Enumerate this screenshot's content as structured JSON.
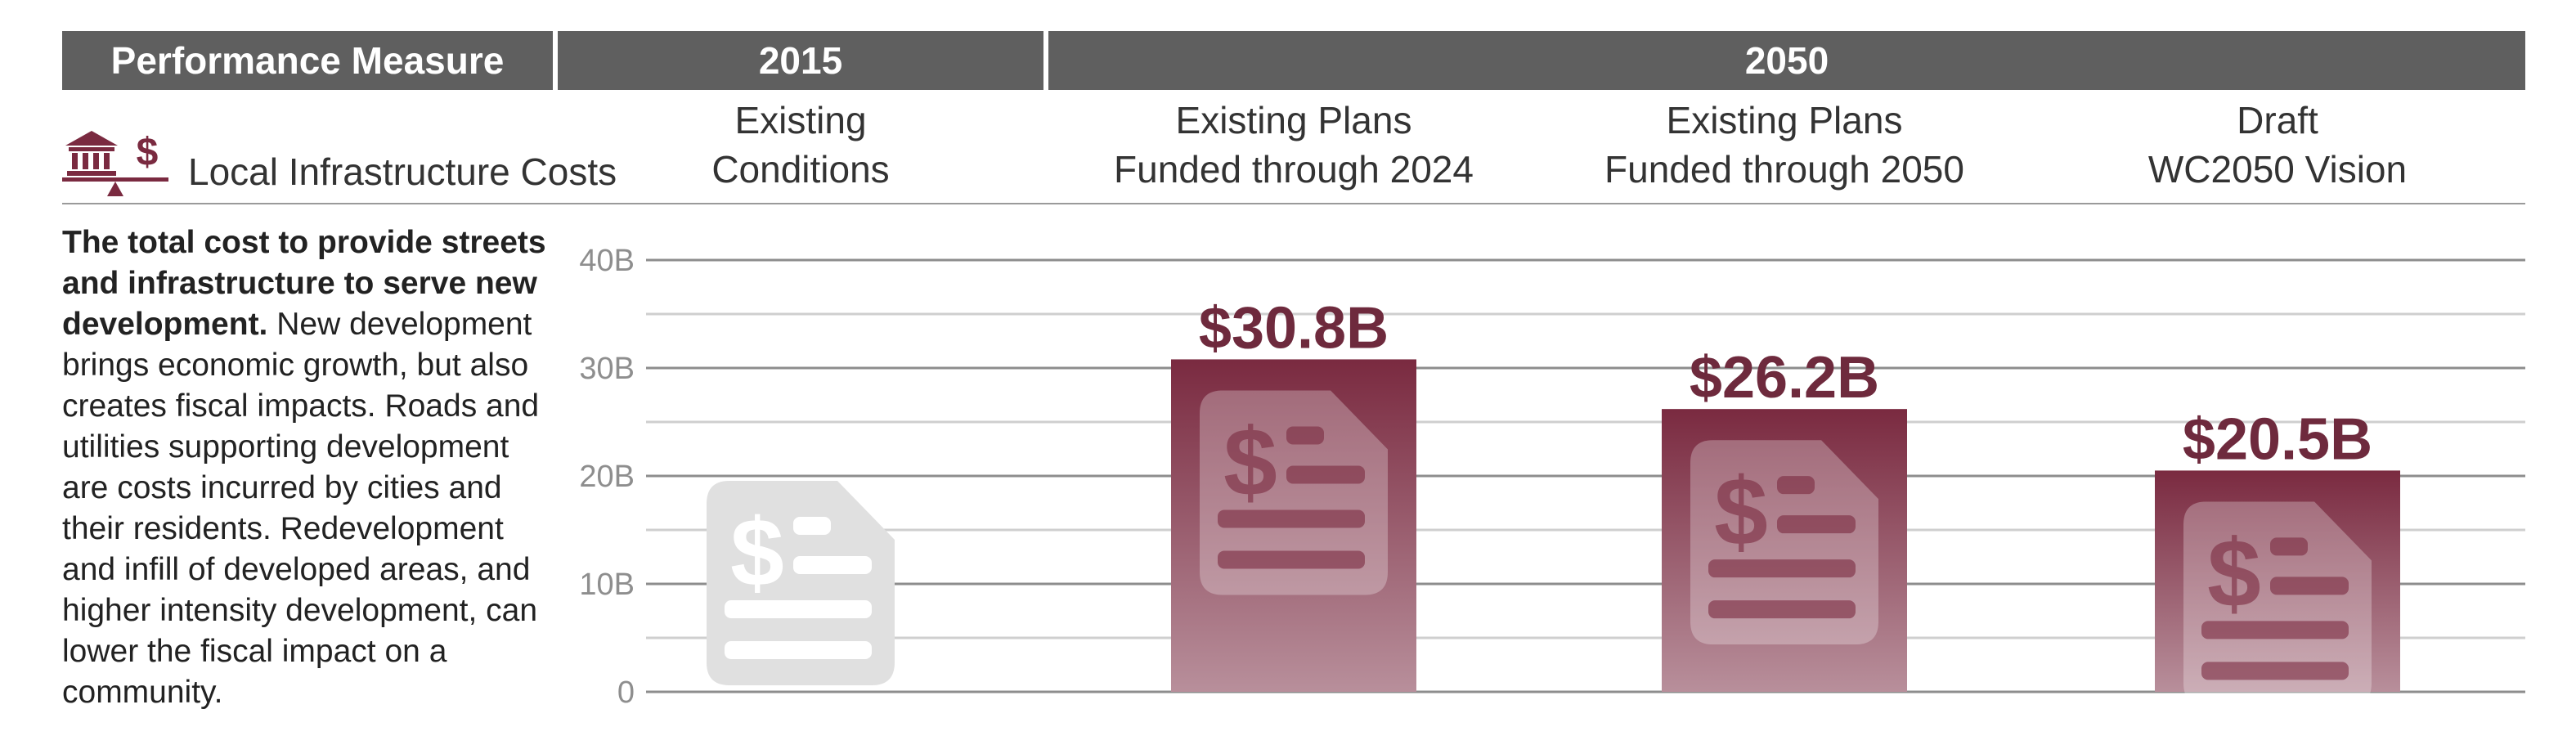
{
  "header": {
    "measure": "Performance Measure",
    "year_2015": "2015",
    "year_2050": "2050"
  },
  "columns": [
    {
      "line1": "Existing",
      "line2": "Conditions"
    },
    {
      "line1": "Existing Plans",
      "line2": "Funded through 2024"
    },
    {
      "line1": "Existing Plans",
      "line2": "Funded through 2050"
    },
    {
      "line1": "Draft",
      "line2": "WC2050 Vision"
    }
  ],
  "measure": {
    "label": "Local Infrastructure Costs",
    "icon": "infrastructure-cost-scale-icon"
  },
  "description": {
    "bold": "The total cost to provide streets and infrastructure to serve new development.",
    "text": " New development brings economic growth, but also creates fiscal impacts. Roads and utilities supporting development are costs incurred by cities and their residents. Redevelopment and infill of developed areas, and higher intensity development, can lower the fiscal impact on a community."
  },
  "colors": {
    "header_bg": "#5f5f5f",
    "bar_top": "#7a2a40",
    "bar_bottom": "#b88f9b",
    "accent": "#6e2a3d",
    "ghost_icon": "#e0e0e0"
  },
  "chart_data": {
    "type": "bar",
    "categories": [
      "Existing Conditions",
      "Existing Plans Funded through 2024",
      "Existing Plans Funded through 2050",
      "Draft WC2050 Vision"
    ],
    "values": [
      null,
      30.8,
      26.2,
      20.5
    ],
    "value_labels": [
      "",
      "$30.8B",
      "$26.2B",
      "$20.5B"
    ],
    "units": "billions of dollars",
    "ylim": [
      0,
      40
    ],
    "yticks": [
      0,
      10,
      20,
      30,
      40
    ],
    "ytick_labels": [
      "0",
      "10B",
      "20B",
      "30B",
      "40B"
    ],
    "minor_gridlines": [
      5,
      15,
      25,
      35
    ],
    "grid": true,
    "legend": "none"
  }
}
